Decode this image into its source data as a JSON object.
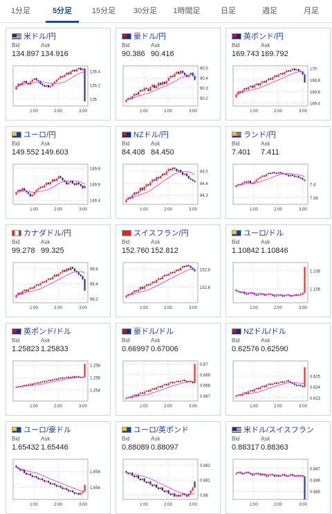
{
  "tabs": [
    {
      "label": "1分足",
      "active": false
    },
    {
      "label": "5分足",
      "active": true
    },
    {
      "label": "15分足",
      "active": false
    },
    {
      "label": "30分足",
      "active": false
    },
    {
      "label": "1時間足",
      "active": false
    },
    {
      "label": "日足",
      "active": false
    },
    {
      "label": "週足",
      "active": false
    },
    {
      "label": "月足",
      "active": false
    }
  ],
  "labels": {
    "bid": "Bid",
    "ask": "Ask"
  },
  "xticks": [
    "1:00",
    "2:00",
    "3:00"
  ],
  "colors": {
    "up": "#ff2a2a",
    "down": "#1a2a8c",
    "ma": "#e040e0",
    "last_up": "#ff2a2a",
    "last_down": "#2a3aa8",
    "link": "#1a3da6"
  },
  "pairs": [
    {
      "name": "米ドル/円",
      "flag": "us",
      "bid": "134.897",
      "ask": "134.916",
      "yticks": [
        "135.4",
        "135.2",
        "135"
      ],
      "ylim": [
        134.9,
        135.48
      ],
      "last_move": "down",
      "closes": [
        135.18,
        135.22,
        135.2,
        135.24,
        135.26,
        135.23,
        135.21,
        135.25,
        135.28,
        135.3,
        135.27,
        135.26,
        135.22,
        135.2,
        135.18,
        135.2,
        135.17,
        135.19,
        135.22,
        135.25,
        135.28,
        135.3,
        135.33,
        135.32,
        135.35,
        135.38,
        135.36,
        135.4,
        135.42,
        135.4,
        135.43,
        135.45,
        135.42,
        135.44,
        134.97
      ]
    },
    {
      "name": "豪ドル/円",
      "flag": "au",
      "bid": "90.386",
      "ask": "90.416",
      "yticks": [
        "90.5",
        "90.4",
        "90.3",
        "90.2"
      ],
      "ylim": [
        90.12,
        90.52
      ],
      "last_move": "down",
      "closes": [
        90.18,
        90.2,
        90.19,
        90.22,
        90.24,
        90.23,
        90.26,
        90.28,
        90.27,
        90.3,
        90.29,
        90.27,
        90.31,
        90.33,
        90.3,
        90.32,
        90.35,
        90.33,
        90.36,
        90.34,
        90.37,
        90.4,
        90.42,
        90.41,
        90.44,
        90.46,
        90.44,
        90.47,
        90.45,
        90.43,
        90.41,
        90.43,
        90.45,
        90.42,
        90.38
      ]
    },
    {
      "name": "英ポンド/円",
      "flag": "gb",
      "bid": "169.743",
      "ask": "169.792",
      "yticks": [
        "170",
        "169.8",
        "169.6",
        "169.4"
      ],
      "ylim": [
        169.35,
        170.05
      ],
      "last_move": "down",
      "closes": [
        169.55,
        169.6,
        169.58,
        169.62,
        169.66,
        169.64,
        169.68,
        169.7,
        169.67,
        169.72,
        169.74,
        169.71,
        169.75,
        169.78,
        169.76,
        169.8,
        169.83,
        169.81,
        169.85,
        169.88,
        169.86,
        169.9,
        169.92,
        169.9,
        169.94,
        169.97,
        169.95,
        169.98,
        170.0,
        169.97,
        169.99,
        169.96,
        169.94,
        169.9,
        169.76
      ]
    },
    {
      "name": "ユーロ/円",
      "flag": "eu",
      "bid": "149.552",
      "ask": "149.603",
      "yticks": [
        "149.8",
        "149.6",
        "149.4"
      ],
      "ylim": [
        149.35,
        149.85
      ],
      "last_move": "up",
      "closes": [
        149.5,
        149.53,
        149.51,
        149.55,
        149.52,
        149.5,
        149.48,
        149.45,
        149.47,
        149.5,
        149.53,
        149.55,
        149.57,
        149.56,
        149.59,
        149.62,
        149.6,
        149.63,
        149.66,
        149.64,
        149.67,
        149.7,
        149.68,
        149.65,
        149.63,
        149.6,
        149.62,
        149.64,
        149.61,
        149.59,
        149.62,
        149.6,
        149.58,
        149.55,
        149.58
      ]
    },
    {
      "name": "NZドル/円",
      "flag": "nz",
      "bid": "84.408",
      "ask": "84.450",
      "yticks": [
        "84.5",
        "84.4",
        "84.3"
      ],
      "ylim": [
        84.22,
        84.56
      ],
      "last_move": "down",
      "closes": [
        84.26,
        84.28,
        84.27,
        84.3,
        84.32,
        84.31,
        84.33,
        84.36,
        84.34,
        84.37,
        84.39,
        84.38,
        84.41,
        84.43,
        84.42,
        84.45,
        84.44,
        84.46,
        84.48,
        84.47,
        84.5,
        84.52,
        84.51,
        84.53,
        84.52,
        84.5,
        84.51,
        84.49,
        84.47,
        84.48,
        84.46,
        84.44,
        84.43,
        84.42,
        84.41
      ]
    },
    {
      "name": "ランド/円",
      "flag": "za",
      "bid": "7.401",
      "ask": "7.411",
      "yticks": [
        "7.4",
        "7.38"
      ],
      "ylim": [
        7.37,
        7.43
      ],
      "last_move": "up",
      "closes": [
        7.398,
        7.4,
        7.399,
        7.402,
        7.404,
        7.403,
        7.405,
        7.402,
        7.401,
        7.404,
        7.407,
        7.409,
        7.411,
        7.413,
        7.412,
        7.415,
        7.417,
        7.416,
        7.418,
        7.417,
        7.416,
        7.418,
        7.417,
        7.415,
        7.416,
        7.414,
        7.412,
        7.414,
        7.413,
        7.411,
        7.412,
        7.41,
        7.409,
        7.407,
        7.405
      ]
    },
    {
      "name": "カナダドル/円",
      "flag": "ca",
      "bid": "99.278",
      "ask": "99.325",
      "yticks": [
        "99.6",
        "99.4",
        "99.2"
      ],
      "ylim": [
        99.15,
        99.68
      ],
      "last_move": "down",
      "closes": [
        99.25,
        99.28,
        99.26,
        99.3,
        99.32,
        99.3,
        99.33,
        99.35,
        99.34,
        99.37,
        99.39,
        99.38,
        99.41,
        99.43,
        99.42,
        99.45,
        99.47,
        99.46,
        99.49,
        99.52,
        99.5,
        99.53,
        99.55,
        99.58,
        99.56,
        99.6,
        99.58,
        99.62,
        99.6,
        99.57,
        99.55,
        99.52,
        99.5,
        99.46,
        99.31
      ]
    },
    {
      "name": "スイスフラン/円",
      "flag": "ch",
      "bid": "152.760",
      "ask": "152.812",
      "yticks": [
        "152.8",
        "152.6"
      ],
      "ylim": [
        152.42,
        152.88
      ],
      "last_move": "down",
      "closes": [
        152.5,
        152.52,
        152.51,
        152.54,
        152.56,
        152.55,
        152.57,
        152.6,
        152.58,
        152.61,
        152.63,
        152.62,
        152.64,
        152.66,
        152.65,
        152.68,
        152.7,
        152.69,
        152.72,
        152.74,
        152.73,
        152.75,
        152.77,
        152.76,
        152.78,
        152.8,
        152.79,
        152.82,
        152.84,
        152.83,
        152.85,
        152.84,
        152.82,
        152.8,
        152.78
      ]
    },
    {
      "name": "ユーロ/ドル",
      "flag": "euus",
      "bid": "1.10842",
      "ask": "1.10846",
      "yticks": [
        "1.108",
        "1.106"
      ],
      "ylim": [
        1.1045,
        1.1089
      ],
      "last_move": "up",
      "closes": [
        1.1058,
        1.1057,
        1.1056,
        1.1057,
        1.1055,
        1.1054,
        1.1055,
        1.1056,
        1.1055,
        1.1054,
        1.1053,
        1.1054,
        1.1055,
        1.1054,
        1.1053,
        1.1054,
        1.1055,
        1.1054,
        1.1053,
        1.1052,
        1.1053,
        1.1054,
        1.1053,
        1.1052,
        1.1053,
        1.1054,
        1.1053,
        1.1052,
        1.1053,
        1.1054,
        1.1053,
        1.1054,
        1.1055,
        1.1056,
        1.1084
      ]
    },
    {
      "name": "英ポンド/ドル",
      "flag": "gbus",
      "bid": "1.25823",
      "ask": "1.25833",
      "yticks": [
        "1.258",
        "1.256",
        "1.254"
      ],
      "ylim": [
        1.2522,
        1.2587
      ],
      "last_move": "up",
      "closes": [
        1.2545,
        1.2546,
        1.2545,
        1.2547,
        1.2548,
        1.2547,
        1.2549,
        1.255,
        1.2549,
        1.2551,
        1.2552,
        1.2551,
        1.2553,
        1.2554,
        1.2553,
        1.2555,
        1.2556,
        1.2555,
        1.2557,
        1.2558,
        1.2557,
        1.2559,
        1.256,
        1.2559,
        1.256,
        1.2561,
        1.256,
        1.2561,
        1.2562,
        1.2561,
        1.2562,
        1.2561,
        1.256,
        1.2561,
        1.2582
      ]
    },
    {
      "name": "豪ドル/ドル",
      "flag": "auus",
      "bid": "0.66997",
      "ask": "0.67006",
      "yticks": [
        "0.67",
        "0.669",
        "0.668",
        "0.667"
      ],
      "ylim": [
        0.6665,
        0.6703
      ],
      "last_move": "up",
      "closes": [
        0.6668,
        0.6669,
        0.6668,
        0.667,
        0.6671,
        0.667,
        0.6672,
        0.6673,
        0.6672,
        0.6674,
        0.6675,
        0.6674,
        0.6676,
        0.6677,
        0.6676,
        0.6678,
        0.6679,
        0.6678,
        0.668,
        0.6681,
        0.668,
        0.6682,
        0.6683,
        0.6682,
        0.6683,
        0.6684,
        0.6683,
        0.6684,
        0.6685,
        0.6684,
        0.6683,
        0.6684,
        0.6683,
        0.6682,
        0.67
      ]
    },
    {
      "name": "NZドル/ドル",
      "flag": "nzus",
      "bid": "0.62576",
      "ask": "0.62590",
      "yticks": [
        "0.625",
        "0.624",
        "0.623"
      ],
      "ylim": [
        0.6227,
        0.6264
      ],
      "last_move": "up",
      "closes": [
        0.6232,
        0.6233,
        0.6232,
        0.6234,
        0.6235,
        0.6234,
        0.6236,
        0.6237,
        0.6236,
        0.6238,
        0.6239,
        0.6238,
        0.624,
        0.6241,
        0.624,
        0.6242,
        0.6243,
        0.6242,
        0.6243,
        0.6244,
        0.6243,
        0.6244,
        0.6245,
        0.6244,
        0.6245,
        0.6246,
        0.6245,
        0.6244,
        0.6243,
        0.6242,
        0.6241,
        0.6242,
        0.6241,
        0.624,
        0.6258
      ]
    },
    {
      "name": "ユーロ/豪ドル",
      "flag": "euau",
      "bid": "1.65432",
      "ask": "1.65446",
      "yticks": [
        "1.656",
        "1.654"
      ],
      "ylim": [
        1.6525,
        1.6575
      ],
      "last_move": "up",
      "closes": [
        1.6565,
        1.6563,
        1.6561,
        1.6562,
        1.6558,
        1.6556,
        1.6557,
        1.6555,
        1.6553,
        1.6554,
        1.6552,
        1.655,
        1.6551,
        1.6549,
        1.6547,
        1.6548,
        1.6546,
        1.6544,
        1.6545,
        1.6543,
        1.6541,
        1.6542,
        1.654,
        1.6538,
        1.6539,
        1.6537,
        1.6535,
        1.6536,
        1.6534,
        1.6532,
        1.6533,
        1.6531,
        1.6533,
        1.6535,
        1.6543
      ]
    },
    {
      "name": "ユーロ/英ポンド",
      "flag": "eugb",
      "bid": "0.88089",
      "ask": "0.88097",
      "yticks": [
        "0.882",
        "0.881",
        "0.88"
      ],
      "ylim": [
        0.8797,
        0.8824
      ],
      "last_move": "down",
      "closes": [
        0.8815,
        0.8814,
        0.8815,
        0.8813,
        0.8812,
        0.8813,
        0.8811,
        0.881,
        0.8811,
        0.8809,
        0.8808,
        0.8809,
        0.8807,
        0.8806,
        0.8807,
        0.8805,
        0.8804,
        0.8805,
        0.8803,
        0.8802,
        0.8803,
        0.8801,
        0.88,
        0.8801,
        0.8799,
        0.88,
        0.8799,
        0.88,
        0.8801,
        0.88,
        0.8799,
        0.8801,
        0.8803,
        0.8805,
        0.8809
      ]
    },
    {
      "name": "米ドル/スイスフラン",
      "flag": "usch",
      "bid": "0.88317",
      "ask": "0.88363",
      "yticks": [
        "0.887",
        "0.886",
        "0.885"
      ],
      "ylim": [
        0.8843,
        0.8878
      ],
      "last_move": "down",
      "closes": [
        0.8866,
        0.8867,
        0.8866,
        0.8865,
        0.8866,
        0.8867,
        0.8866,
        0.8865,
        0.8864,
        0.8865,
        0.8866,
        0.8865,
        0.8864,
        0.8865,
        0.8864,
        0.8863,
        0.8864,
        0.8865,
        0.8864,
        0.8863,
        0.8864,
        0.8863,
        0.8864,
        0.8865,
        0.8864,
        0.8863,
        0.8864,
        0.8865,
        0.8864,
        0.8863,
        0.8864,
        0.8863,
        0.8864,
        0.8863,
        0.8832
      ]
    }
  ]
}
